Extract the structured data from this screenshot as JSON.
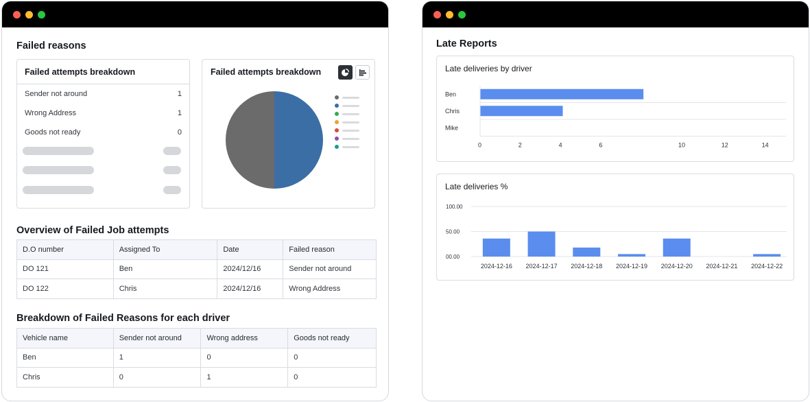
{
  "left_window": {
    "heading": "Failed reasons",
    "breakdown_list": {
      "title": "Failed attempts breakdown",
      "rows": [
        {
          "label": "Sender not around",
          "value": "1"
        },
        {
          "label": "Wrong Address",
          "value": "1"
        },
        {
          "label": "Goods not ready",
          "value": "0"
        }
      ]
    },
    "pie_panel": {
      "title": "Failed attempts breakdown",
      "icons": [
        "pie-chart-icon",
        "bar-chart-icon"
      ],
      "legend_colors": [
        "#6b6b6b",
        "#3b6ea5",
        "#3aa655",
        "#f0a030",
        "#d94a3a",
        "#8e4fb0",
        "#18a08a"
      ]
    },
    "overview": {
      "heading": "Overview of Failed Job attempts",
      "columns": [
        "D.O number",
        "Assigned To",
        "Date",
        "Failed reason"
      ],
      "rows": [
        [
          "DO 121",
          "Ben",
          "2024/12/16",
          "Sender not around"
        ],
        [
          "DO 122",
          "Chris",
          "2024/12/16",
          "Wrong Address"
        ]
      ]
    },
    "driver_breakdown": {
      "heading": "Breakdown of Failed Reasons for each driver",
      "columns": [
        "Vehicle name",
        "Sender not around",
        "Wrong address",
        "Goods not ready"
      ],
      "rows": [
        [
          "Ben",
          "1",
          "0",
          "0"
        ],
        [
          "Chris",
          "0",
          "1",
          "0"
        ]
      ]
    }
  },
  "right_window": {
    "heading": "Late Reports"
  },
  "chart_data": [
    {
      "type": "pie",
      "title": "Failed attempts breakdown",
      "categories": [
        "Sender not around",
        "Wrong Address"
      ],
      "values": [
        1,
        1
      ],
      "colors": [
        "#6b6b6b",
        "#3b6ea5"
      ]
    },
    {
      "type": "bar",
      "orientation": "horizontal",
      "title": "Late deliveries by driver",
      "categories": [
        "Ben",
        "Chris",
        "Mike"
      ],
      "values": [
        8.1,
        4.1,
        0
      ],
      "xticks": [
        "0",
        "2",
        "4",
        "6",
        "10",
        "12",
        "14"
      ],
      "color": "#5b8def",
      "grid": true
    },
    {
      "type": "bar",
      "title": "Late deliveries %",
      "categories": [
        "2024-12-16",
        "2024-12-17",
        "2024-12-18",
        "2024-12-19",
        "2024-12-20",
        "2024-12-21",
        "2024-12-22"
      ],
      "values": [
        36,
        50,
        18,
        5,
        36,
        0,
        5
      ],
      "yticks": [
        "100.00",
        "50.00",
        "00.00"
      ],
      "ylim": [
        0,
        100
      ],
      "color": "#5b8def",
      "grid": true
    }
  ]
}
